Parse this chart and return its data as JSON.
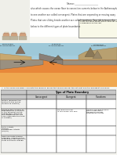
{
  "bg_color": "#f5f5f0",
  "top_text_color": "#222222",
  "table_header": "Type of Plate Boundary",
  "col1": "Convergent",
  "col2": "Divergent",
  "col3": "Transform",
  "row_labels": [
    "Motion (describe the\nmotion of the plates\nrelative to position)",
    "Effect of the collision or\nseparation by 2 or more\nof the adjacent plates:\nTopography (what are\nthe landforms that are\nassociated with this type\nof margin)",
    "Plate Activity\n(Yes/No)\nEarthquake Activity\n(Yes/No)",
    "Give one plate margin\nexample. Address in the\nreasonable description of\nplate boundary change"
  ],
  "cell_texts": [
    [
      "",
      "",
      ""
    ],
    [
      "",
      "Do land you see:\n\nIn the ocean you see:",
      "Usually you don't really\nsee a chain but a\ntransform margin\nsometimes you do"
    ],
    [
      "",
      "",
      ""
    ],
    [
      "",
      "",
      ""
    ]
  ],
  "instruction_box_text": "Color the three major plate types for the\n3 Diagrams on the left",
  "body_text_lines": [
    "also which causes the ocean floor to convection currents below in the Asthenosphere",
    "to one another are called convergent. Plates that are separating or moving away",
    "Plates that are sliding beside another are called transform. Your job is to use the",
    "below to the different types of plate boundaries"
  ],
  "header_bg": "#c8c8c8",
  "sky_color": "#9ec8d8",
  "ocean_color": "#7ab0c8",
  "mantle_top_color": "#e8883a",
  "mantle_bot_color": "#f0a850",
  "plate_color": "#a09080",
  "plate_color2": "#b0a090",
  "land_color": "#c8a060",
  "small_font": 2.4,
  "tiny_font": 1.9
}
